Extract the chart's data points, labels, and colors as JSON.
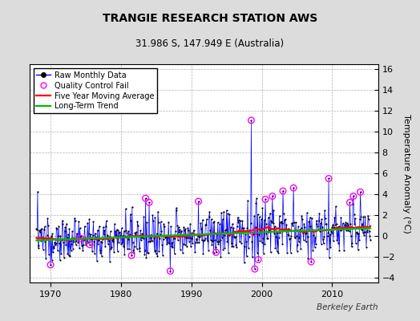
{
  "title": "TRANGIE RESEARCH STATION AWS",
  "subtitle": "31.986 S, 147.949 E (Australia)",
  "ylabel": "Temperature Anomaly (°C)",
  "credit": "Berkeley Earth",
  "ylim": [
    -4.5,
    16.5
  ],
  "yticks": [
    -4,
    -2,
    0,
    2,
    4,
    6,
    8,
    10,
    12,
    14,
    16
  ],
  "xlim": [
    1967.0,
    2016.5
  ],
  "xticks": [
    1970,
    1980,
    1990,
    2000,
    2010
  ],
  "bg_color": "#dcdcdc",
  "plot_bg_color": "#ffffff",
  "raw_line_color": "#0000ff",
  "raw_dot_color": "#000000",
  "qc_fail_color": "#ff00ff",
  "moving_avg_color": "#ff0000",
  "trend_color": "#00bb00",
  "title_fontsize": 10,
  "subtitle_fontsize": 8.5,
  "ylabel_fontsize": 8,
  "tick_fontsize": 8,
  "legend_fontsize": 7,
  "credit_fontsize": 7.5
}
